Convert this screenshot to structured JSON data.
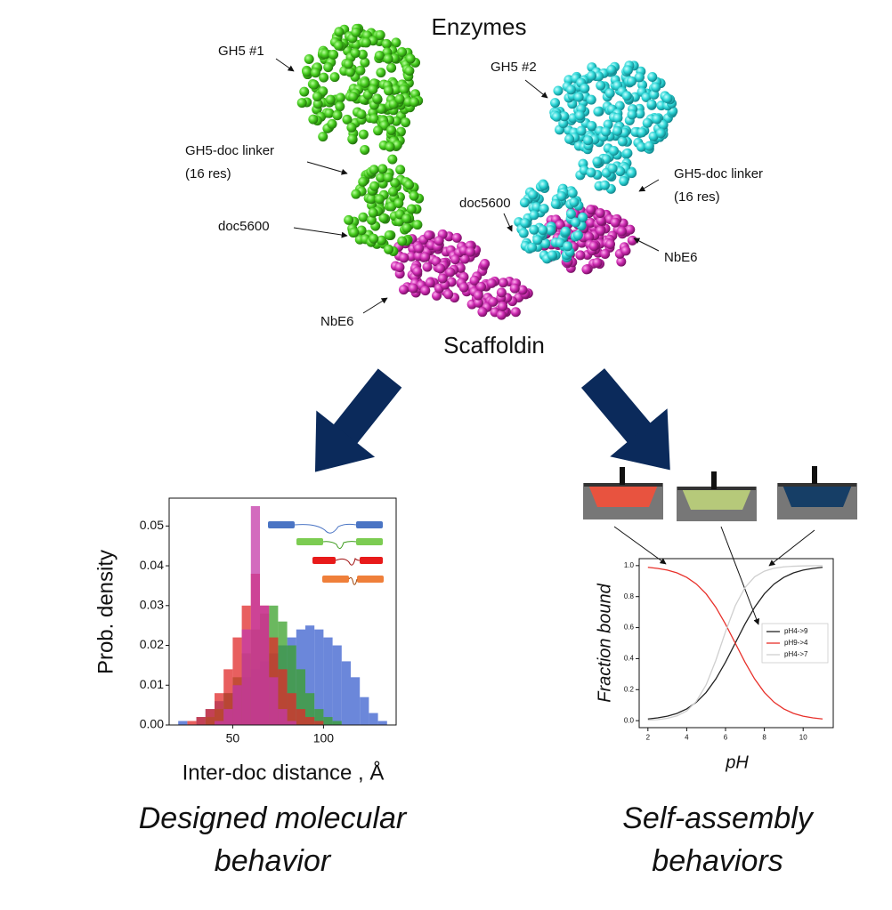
{
  "diagram": {
    "top_label": "Enzymes",
    "bottom_label": "Scaffoldin",
    "gh5_1": "GH5 #1",
    "gh5_2": "GH5 #2",
    "linker_left": [
      "GH5-doc linker",
      "(16 res)"
    ],
    "linker_right": [
      "GH5-doc linker",
      "(16 res)"
    ],
    "doc_left": "doc5600",
    "doc_right": "doc5600",
    "nbe6_left": "NbE6",
    "nbe6_right": "NbE6"
  },
  "captions": {
    "left": [
      "Designed molecular",
      "behavior"
    ],
    "right": [
      "Self-assembly",
      "behaviors"
    ]
  },
  "chart_data": [
    {
      "type": "histogram",
      "x_label": "Inter-doc distance , Å",
      "y_label": "Prob. density",
      "bins": [
        20,
        25,
        30,
        35,
        40,
        45,
        50,
        55,
        60,
        65,
        70,
        75,
        80,
        85,
        90,
        95,
        100,
        105,
        110,
        115,
        120,
        125,
        130,
        135
      ],
      "series": [
        {
          "color": "#3a5fcd",
          "values": [
            0.001,
            0,
            0.002,
            0.004,
            0.006,
            0.008,
            0.01,
            0.012,
            0.014,
            0.016,
            0.018,
            0.02,
            0.022,
            0.024,
            0.025,
            0.024,
            0.022,
            0.02,
            0.016,
            0.012,
            0.007,
            0.003,
            0.001
          ]
        },
        {
          "color": "#3aa02a",
          "values": [
            0,
            0,
            0,
            0.002,
            0.004,
            0.008,
            0.012,
            0.018,
            0.024,
            0.028,
            0.03,
            0.026,
            0.02,
            0.014,
            0.008,
            0.004,
            0.002,
            0.001,
            0,
            0,
            0,
            0,
            0
          ]
        },
        {
          "color": "#e02a2a",
          "values": [
            0,
            0.001,
            0.002,
            0.004,
            0.008,
            0.014,
            0.022,
            0.03,
            0.038,
            0.03,
            0.022,
            0.014,
            0.008,
            0.004,
            0.002,
            0.001,
            0,
            0,
            0,
            0,
            0,
            0,
            0
          ]
        },
        {
          "color": "#c43aa8",
          "values": [
            0,
            0,
            0,
            0,
            0.001,
            0.004,
            0.01,
            0.024,
            0.055,
            0.03,
            0.012,
            0.004,
            0.001,
            0,
            0,
            0,
            0,
            0,
            0,
            0,
            0,
            0,
            0
          ]
        }
      ],
      "xlim": [
        15,
        140
      ],
      "xticks": [
        50,
        100
      ],
      "ylim": [
        0,
        0.057
      ],
      "yticks": [
        {
          "value": 0,
          "label": "0.00"
        },
        {
          "value": 0.01,
          "label": "0.01"
        },
        {
          "value": 0.02,
          "label": "0.02"
        },
        {
          "value": 0.03,
          "label": "0.03"
        },
        {
          "value": 0.04,
          "label": "0.04"
        },
        {
          "value": 0.05,
          "label": "0.05"
        }
      ]
    },
    {
      "type": "line",
      "x_label": "pH",
      "y_label": "Fraction bound",
      "x": [
        2,
        2.5,
        3,
        3.5,
        4,
        4.5,
        5,
        5.5,
        6,
        6.5,
        7,
        7.5,
        8,
        8.5,
        9,
        9.5,
        10,
        10.5,
        11
      ],
      "series": [
        {
          "name": "pH4->9",
          "color": "#222222",
          "values": [
            0.011,
            0.018,
            0.029,
            0.047,
            0.076,
            0.119,
            0.182,
            0.269,
            0.378,
            0.5,
            0.622,
            0.731,
            0.818,
            0.881,
            0.924,
            0.953,
            0.971,
            0.982,
            0.989
          ]
        },
        {
          "name": "pH9->4",
          "color": "#e8302a",
          "values": [
            0.989,
            0.982,
            0.971,
            0.953,
            0.924,
            0.881,
            0.818,
            0.731,
            0.622,
            0.5,
            0.378,
            0.269,
            0.182,
            0.119,
            0.076,
            0.047,
            0.029,
            0.018,
            0.011
          ]
        },
        {
          "name": "pH4->7",
          "color": "#cfcfcf",
          "values": [
            0.003,
            0.007,
            0.015,
            0.031,
            0.063,
            0.125,
            0.231,
            0.389,
            0.574,
            0.741,
            0.858,
            0.928,
            0.964,
            0.983,
            0.992,
            0.996,
            0.998,
            0.999,
            1.0
          ]
        }
      ],
      "xlim": [
        1.55,
        11.55
      ],
      "xticks": [
        2,
        4,
        6,
        8,
        10
      ],
      "ylim": [
        -0.045,
        1.045
      ],
      "yticks": [
        {
          "value": 0,
          "label": "0.0"
        },
        {
          "value": 0.2,
          "label": "0.2"
        },
        {
          "value": 0.4,
          "label": "0.4"
        },
        {
          "value": 0.6,
          "label": "0.6"
        },
        {
          "value": 0.8,
          "label": "0.8"
        },
        {
          "value": 1,
          "label": "1.0"
        }
      ],
      "legend": "center right"
    }
  ]
}
